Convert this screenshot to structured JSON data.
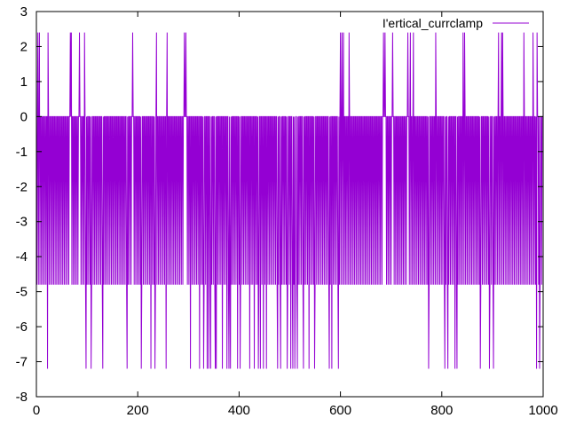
{
  "chart_data": {
    "type": "line",
    "title": "",
    "xlabel": "",
    "ylabel": "",
    "xlim": [
      0,
      1000
    ],
    "ylim": [
      -8,
      3
    ],
    "x_ticks": [
      0,
      200,
      400,
      600,
      800,
      1000
    ],
    "x_tick_labels": [
      "0",
      "200",
      "400",
      "600",
      "800",
      "1000"
    ],
    "y_ticks": [
      3,
      2,
      1,
      0,
      -1,
      -2,
      -3,
      -4,
      -5,
      -6,
      -7,
      -8
    ],
    "y_tick_labels": [
      "3",
      "2",
      "1",
      "0",
      "-1",
      "-2",
      "-3",
      "-4",
      "-5",
      "-6",
      "-7",
      "-8"
    ],
    "grid": false,
    "legend_position": "top-right",
    "color": "#9400d3",
    "series": [
      {
        "name": "I'ertical_currclamp",
        "description_levels": {
          "baseline": 0,
          "trough": -4.8,
          "positive_spike": 2.4,
          "deep_trough": -7.2
        },
        "positive_spike_x": [
          3,
          6,
          23,
          67,
          69,
          85,
          95,
          190,
          237,
          258,
          292,
          295,
          600,
          603,
          606,
          617,
          685,
          688,
          703,
          733,
          738,
          744,
          788,
          842,
          845,
          912,
          918,
          920,
          962,
          980,
          988
        ],
        "deep_trough_x": [
          22,
          98,
          108,
          131,
          179,
          207,
          226,
          234,
          256,
          304,
          322,
          330,
          337,
          340,
          344,
          353,
          355,
          367,
          376,
          380,
          383,
          397,
          402,
          421,
          430,
          438,
          442,
          448,
          454,
          476,
          482,
          495,
          502,
          506,
          510,
          515,
          527,
          538,
          549,
          578,
          583,
          596,
          774,
          806,
          812,
          826,
          830,
          876,
          894,
          902,
          987,
          993
        ],
        "x_start": 0,
        "x_end": 999,
        "cycle_period": 3
      }
    ]
  }
}
